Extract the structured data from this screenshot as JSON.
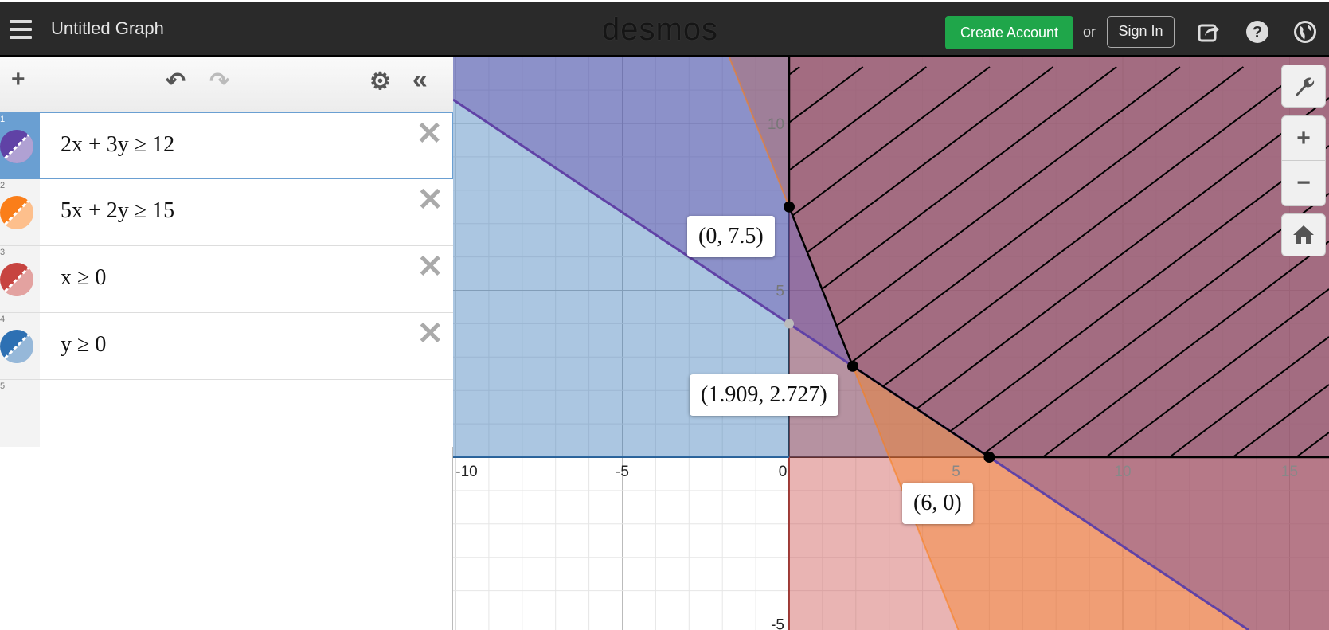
{
  "header": {
    "title": "Untitled Graph",
    "logo": "desmos",
    "create_account": "Create Account",
    "or": "or",
    "sign_in": "Sign In",
    "icons": [
      "menu-icon",
      "share-icon",
      "help-icon",
      "globe-icon"
    ]
  },
  "toolbar": {
    "add": "+",
    "undo": "↶",
    "redo": "↷",
    "settings": "⚙",
    "collapse": "«"
  },
  "expressions": [
    {
      "num": "1",
      "text": "2x + 3y ≥ 12",
      "color": "#6042a6",
      "selected": true
    },
    {
      "num": "2",
      "text": "5x + 2y ≥ 15",
      "color": "#fa7e19"
    },
    {
      "num": "3",
      "text": "x ≥ 0",
      "color": "#c74440"
    },
    {
      "num": "4",
      "text": "y ≥ 0",
      "color": "#2d70b3"
    },
    {
      "num": "5",
      "text": ""
    }
  ],
  "delete_glyph": "✕",
  "graph": {
    "x_ticks": [
      "-10",
      "-5",
      "0",
      "5",
      "10",
      "15"
    ],
    "y_ticks": [
      "10",
      "5",
      "-5"
    ],
    "points": [
      {
        "label": "(0, 7.5)",
        "x": 0,
        "y": 7.5
      },
      {
        "label": "(1.909, 2.727)",
        "x": 1.909,
        "y": 2.727
      },
      {
        "label": "(6, 0)",
        "x": 6,
        "y": 0
      }
    ],
    "controls": {
      "wrench": "wrench-icon",
      "zoom_in": "+",
      "zoom_out": "−",
      "home": "home-icon"
    }
  }
}
